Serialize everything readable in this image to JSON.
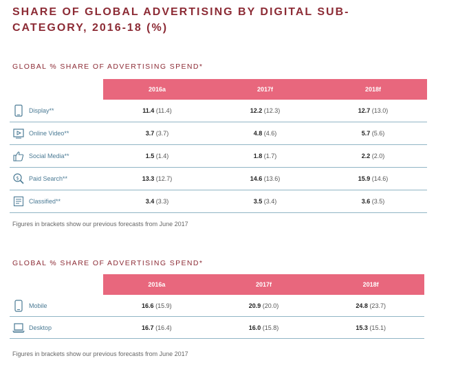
{
  "title": "SHARE OF GLOBAL ADVERTISING BY DIGITAL SUB-CATEGORY, 2016-18 (%)",
  "table1": {
    "heading": "GLOBAL % SHARE OF ADVERTISING SPEND*",
    "columns": [
      "2016a",
      "2017f",
      "2018f"
    ],
    "rows": [
      {
        "label": "Display**",
        "icon": "display-icon",
        "values": [
          [
            "11.4",
            "(11.4)"
          ],
          [
            "12.2",
            "(12.3)"
          ],
          [
            "12.7",
            "(13.0)"
          ]
        ]
      },
      {
        "label": "Online Video**",
        "icon": "video-play-icon",
        "values": [
          [
            "3.7",
            "(3.7)"
          ],
          [
            "4.8",
            "(4.6)"
          ],
          [
            "5.7",
            "(5.6)"
          ]
        ]
      },
      {
        "label": "Social Media**",
        "icon": "thumbs-up-icon",
        "values": [
          [
            "1.5",
            "(1.4)"
          ],
          [
            "1.8",
            "(1.7)"
          ],
          [
            "2.2",
            "(2.0)"
          ]
        ]
      },
      {
        "label": "Paid Search**",
        "icon": "search-icon",
        "values": [
          [
            "13.3",
            "(12.7)"
          ],
          [
            "14.6",
            "(13.6)"
          ],
          [
            "15.9",
            "(14.6)"
          ]
        ]
      },
      {
        "label": "Classified**",
        "icon": "list-icon",
        "values": [
          [
            "3.4",
            "(3.3)"
          ],
          [
            "3.5",
            "(3.4)"
          ],
          [
            "3.6",
            "(3.5)"
          ]
        ]
      }
    ],
    "note": "Figures in brackets show our previous forecasts from June 2017"
  },
  "table2": {
    "heading": "GLOBAL % SHARE OF ADVERTISING SPEND*",
    "columns": [
      "2016a",
      "2017f",
      "2018f"
    ],
    "rows": [
      {
        "label": "Mobile",
        "icon": "mobile-icon",
        "values": [
          [
            "16.6",
            "(15.9)"
          ],
          [
            "20.9",
            "(20.0)"
          ],
          [
            "24.8",
            "(23.7)"
          ]
        ]
      },
      {
        "label": "Desktop",
        "icon": "laptop-icon",
        "values": [
          [
            "16.7",
            "(16.4)"
          ],
          [
            "16.0",
            "(15.8)"
          ],
          [
            "15.3",
            "(15.1)"
          ]
        ]
      }
    ],
    "note": "Figures in brackets show our previous forecasts from June 2017"
  },
  "colors": {
    "header_bg": "#e8677d",
    "title": "#8c2b35",
    "rule": "#8fb4c4",
    "label": "#4a7a94"
  }
}
